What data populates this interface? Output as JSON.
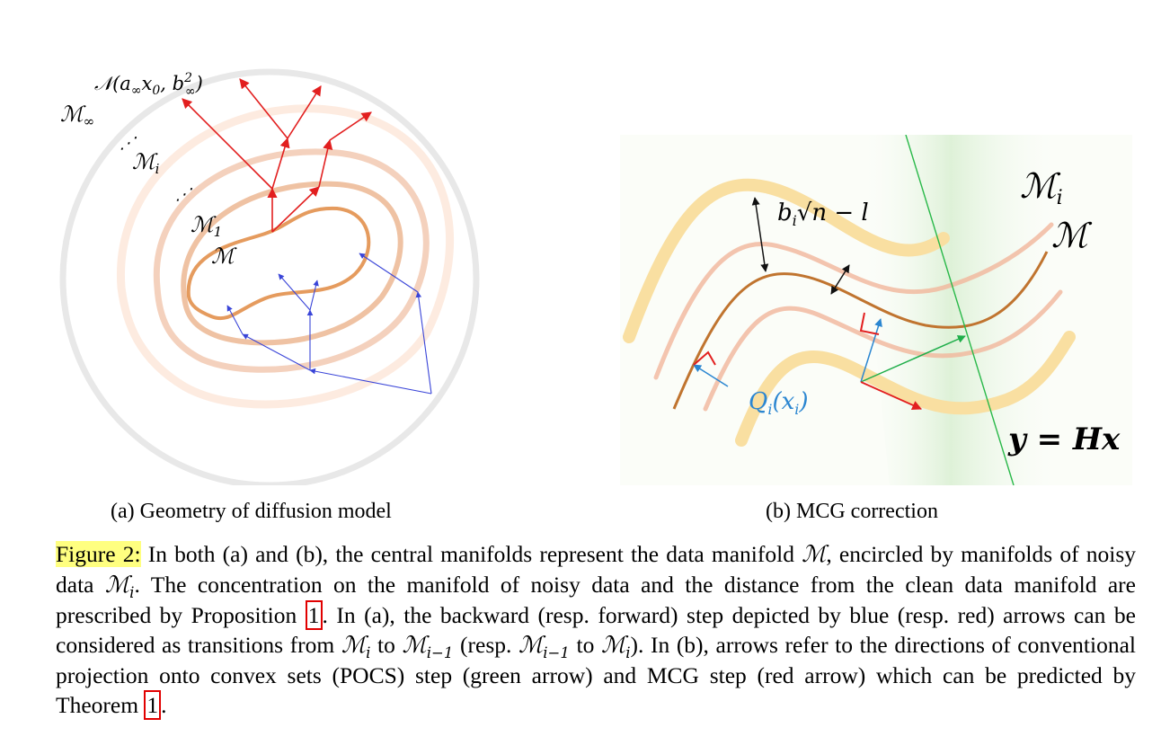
{
  "figure_a": {
    "labels": {
      "noise_prefix": "𝒩(a",
      "noise_sub_inf": "∞",
      "noise_x0": "x",
      "noise_x0_sub": "0",
      "noise_comma": ", b",
      "noise_b_sup": "2",
      "noise_b_sub": "∞",
      "noise_close": ")",
      "m_inf": "ℳ",
      "m_inf_sub": "∞",
      "m_i": "ℳ",
      "m_i_sub": "i",
      "m_1": "ℳ",
      "m_1_sub": "1",
      "m": "ℳ",
      "dots": "⋰"
    },
    "colors": {
      "forward": "#e21f1f",
      "backward": "#3a45d8",
      "manifold": "#e59b5e",
      "outer": "#e6e6e6"
    }
  },
  "figure_b": {
    "labels": {
      "m_i": "ℳ",
      "m_i_sub": "i",
      "m": "ℳ",
      "b_i": "b",
      "b_i_sub": "i",
      "sqrt_expr": "√n − l",
      "q": "Q",
      "q_sub": "i",
      "q_arg": "(x",
      "q_arg_sub": "i",
      "q_close": ")",
      "constraint": "y = Hx"
    },
    "colors": {
      "manifold": "#c0742f",
      "band_near": "#f2b79c",
      "band_far": "#f9dfa1",
      "pocs": "#1fae4a",
      "mcg": "#e21f1f",
      "projection": "#2b86d1",
      "constraint_line": "#28b848"
    }
  },
  "captions": {
    "sub_a": "(a) Geometry of diffusion model",
    "sub_b": "(b) MCG correction",
    "figure_label": "Figure 2:",
    "text_1": " In both (a) and (b), the central manifolds represent the data manifold ",
    "text_2": ", encircled by manifolds of noisy data ",
    "text_3": ". The concentration on the manifold of noisy data and the distance from the clean data manifold are prescribed by Proposition ",
    "ref_1": "1",
    "text_4": ". In (a), the backward (resp. forward) step depicted by blue (resp. red) arrows can be considered as transitions from ",
    "text_5": " to ",
    "text_6": " (resp. ",
    "text_7": " to ",
    "text_8": "). In (b), arrows refer to the directions of conventional projection onto convex sets (POCS) step (green arrow) and MCG step (red arrow) which can be predicted by Theorem ",
    "ref_2": "1",
    "text_9": ".",
    "math_m": "ℳ",
    "math_mi": "ℳ",
    "math_mi_sub": "i",
    "math_mim1": "ℳ",
    "math_mim1_sub": "i−1"
  }
}
